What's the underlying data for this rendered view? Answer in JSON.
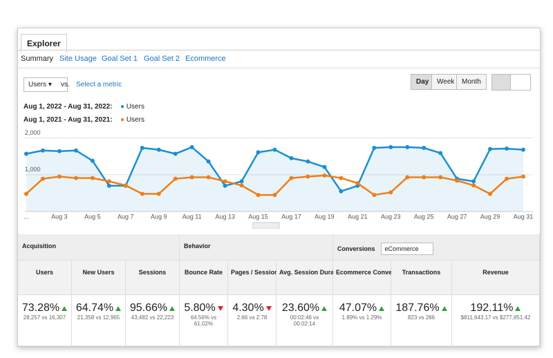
{
  "tabs": {
    "active": "Explorer",
    "subtabs": [
      "Summary",
      "Site Usage",
      "Goal Set 1",
      "Goal Set 2",
      "Ecommerce"
    ]
  },
  "controls": {
    "metric": "Users",
    "vs": "vs.",
    "select": "Select a metric",
    "periods": [
      "Day",
      "Week",
      "Month"
    ]
  },
  "chart_data": {
    "type": "line",
    "categories": [
      "...",
      null,
      "Aug 3",
      null,
      "Aug 5",
      null,
      "Aug 7",
      null,
      "Aug 9",
      null,
      "Aug 11",
      null,
      "Aug 13",
      null,
      "Aug 15",
      null,
      "Aug 17",
      null,
      "Aug 19",
      null,
      "Aug 21",
      null,
      "Aug 23",
      null,
      "Aug 25",
      null,
      "Aug 27",
      null,
      "Aug 29",
      null,
      "Aug 31"
    ],
    "series": [
      {
        "period": "Aug 1, 2022 - Aug 31, 2022:",
        "name": "Users",
        "color": "#1a8fd1",
        "area": true,
        "values": [
          1570,
          1660,
          1640,
          1660,
          1380,
          700,
          700,
          1730,
          1680,
          1570,
          1750,
          1360,
          700,
          820,
          1610,
          1680,
          1450,
          1360,
          1210,
          550,
          700,
          1730,
          1750,
          1750,
          1730,
          1590,
          890,
          820,
          1700,
          1710,
          1680
        ]
      },
      {
        "period": "Aug 1, 2021 - Aug 31, 2021:",
        "name": "Users",
        "color": "#f07e16",
        "area": false,
        "values": [
          480,
          890,
          950,
          910,
          910,
          820,
          710,
          480,
          480,
          890,
          930,
          930,
          820,
          710,
          450,
          450,
          910,
          950,
          980,
          910,
          770,
          450,
          520,
          930,
          930,
          930,
          840,
          710,
          480,
          890,
          950
        ]
      }
    ],
    "ylim": [
      0,
      2200
    ],
    "yticks": [
      {
        "value": 1000,
        "label": "1,000"
      },
      {
        "value": 2000,
        "label": "2,000"
      }
    ],
    "grid": true
  },
  "table": {
    "groups": [
      "Acquisition",
      "Behavior",
      "Conversions"
    ],
    "conversion_select": "eCommerce",
    "metrics": [
      {
        "name": "Users",
        "change": "73.28%",
        "trend": "up",
        "compare": "28,257 vs 16,307"
      },
      {
        "name": "New Users",
        "change": "64.74%",
        "trend": "up",
        "compare": "21,358 vs 12,965"
      },
      {
        "name": "Sessions",
        "change": "95.66%",
        "trend": "up",
        "compare": "43,482 vs 22,223"
      },
      {
        "name": "Bounce Rate",
        "change": "5.80%",
        "trend": "down",
        "compare": "64.56% vs 61.02%"
      },
      {
        "name": "Pages / Session",
        "change": "4.30%",
        "trend": "down",
        "compare": "2.66 vs 2.78"
      },
      {
        "name": "Avg. Session Duration",
        "change": "23.60%",
        "trend": "up",
        "compare": "00:02:46 vs 00:02:14"
      },
      {
        "name": "Ecommerce Conversion Rate",
        "change": "47.07%",
        "trend": "up",
        "compare": "1.89% vs 1.29%"
      },
      {
        "name": "Transactions",
        "change": "187.76%",
        "trend": "up",
        "compare": "823 vs 286"
      },
      {
        "name": "Revenue",
        "change": "192.11%",
        "trend": "up",
        "compare": "$811,643.17 vs $277,851.42"
      }
    ]
  }
}
